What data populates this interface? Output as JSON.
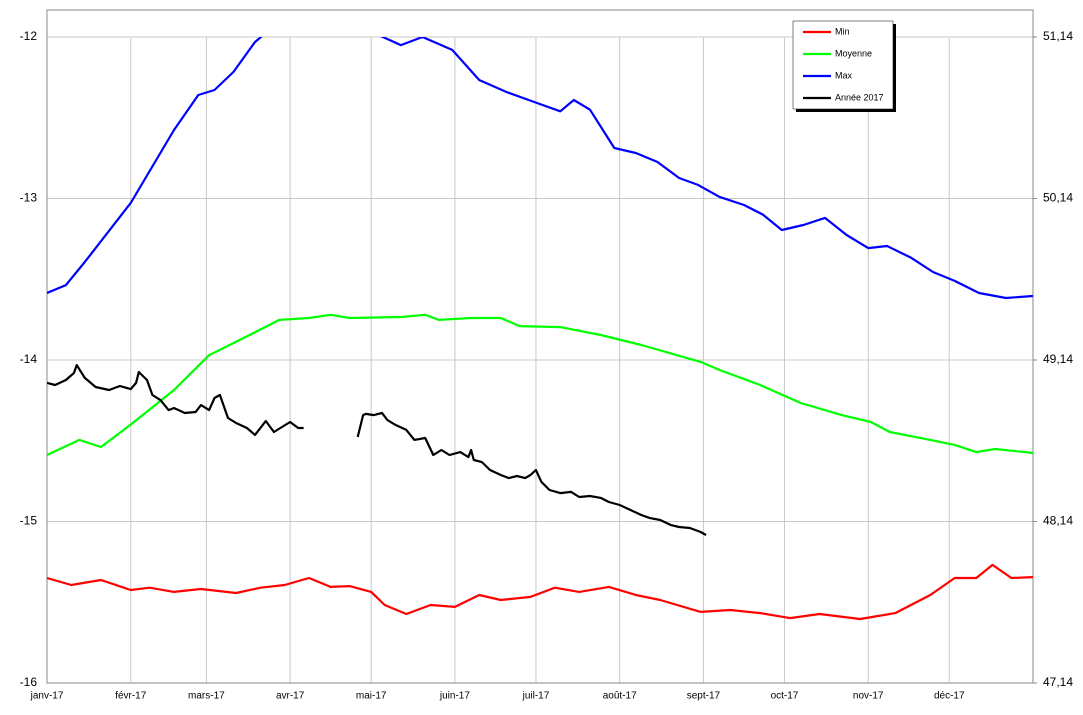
{
  "chart_data": {
    "type": "line",
    "xlim": [
      0,
      365
    ],
    "xticks": [
      {
        "value": 0,
        "label": "janv-17"
      },
      {
        "value": 31,
        "label": "févr-17"
      },
      {
        "value": 59,
        "label": "mars-17"
      },
      {
        "value": 90,
        "label": "avr-17"
      },
      {
        "value": 120,
        "label": "mai-17"
      },
      {
        "value": 151,
        "label": "juin-17"
      },
      {
        "value": 181,
        "label": "juil-17"
      },
      {
        "value": 212,
        "label": "août-17"
      },
      {
        "value": 243,
        "label": "sept-17"
      },
      {
        "value": 273,
        "label": "oct-17"
      },
      {
        "value": 304,
        "label": "nov-17"
      },
      {
        "value": 334,
        "label": "déc-17"
      }
    ],
    "ylim": [
      -16,
      -12
    ],
    "yticks": [
      -16,
      -15,
      -14,
      -13,
      -12
    ],
    "y2lim": [
      47.14,
      51.14
    ],
    "y2ticks": [
      {
        "value": 47.14,
        "label": "47,14"
      },
      {
        "value": 48.14,
        "label": "48,14"
      },
      {
        "value": 49.14,
        "label": "49,14"
      },
      {
        "value": 50.14,
        "label": "50,14"
      },
      {
        "value": 51.14,
        "label": "51,14"
      }
    ],
    "grid": true,
    "legend": "top-right",
    "series": [
      {
        "name": "Min",
        "color": "#ff0000",
        "x": [
          0,
          9,
          20,
          31,
          38,
          47,
          57,
          70,
          79,
          88,
          97,
          105,
          112,
          120,
          125,
          133,
          142,
          151,
          160,
          168,
          179,
          188,
          197,
          208,
          218,
          227,
          242,
          253,
          264,
          275,
          286,
          301,
          314,
          327,
          336,
          344,
          350,
          357,
          365
        ],
        "values": [
          -15.35,
          -15.393,
          -15.362,
          -15.424,
          -15.41,
          -15.436,
          -15.418,
          -15.443,
          -15.41,
          -15.393,
          -15.35,
          -15.405,
          -15.4,
          -15.436,
          -15.517,
          -15.573,
          -15.517,
          -15.529,
          -15.455,
          -15.486,
          -15.467,
          -15.41,
          -15.436,
          -15.405,
          -15.455,
          -15.486,
          -15.56,
          -15.548,
          -15.567,
          -15.598,
          -15.573,
          -15.604,
          -15.567,
          -15.455,
          -15.35,
          -15.35,
          -15.269,
          -15.35,
          -15.344
        ]
      },
      {
        "name": "Moyenne",
        "color": "#00ff00",
        "x": [
          0,
          12,
          20,
          31,
          47,
          60,
          75,
          86,
          97,
          105,
          112,
          131,
          140,
          145,
          157,
          168,
          175,
          190,
          205,
          220,
          242,
          249,
          264,
          279,
          294,
          305,
          312,
          327,
          336,
          344,
          351,
          365
        ],
        "values": [
          -14.588,
          -14.495,
          -14.539,
          -14.4,
          -14.186,
          -13.97,
          -13.845,
          -13.752,
          -13.74,
          -13.72,
          -13.74,
          -13.734,
          -13.72,
          -13.752,
          -13.74,
          -13.74,
          -13.79,
          -13.796,
          -13.845,
          -13.907,
          -14.012,
          -14.062,
          -14.155,
          -14.266,
          -14.34,
          -14.384,
          -14.446,
          -14.495,
          -14.526,
          -14.57,
          -14.551,
          -14.576
        ]
      },
      {
        "name": "Max",
        "color": "#0000ff",
        "x": [
          0,
          7,
          14,
          31,
          47,
          56,
          62,
          69,
          77,
          90,
          110,
          123,
          131,
          139,
          150,
          160,
          170,
          180,
          190,
          195,
          201,
          210,
          218,
          226,
          234,
          241,
          249,
          258,
          265,
          272,
          280,
          288,
          296,
          304,
          311,
          320,
          328,
          336,
          345,
          355,
          365
        ],
        "values": [
          -13.585,
          -13.536,
          -13.393,
          -13.028,
          -12.576,
          -12.359,
          -12.328,
          -12.217,
          -12.031,
          -11.85,
          -11.85,
          -11.99,
          -12.05,
          -12.0,
          -12.08,
          -12.266,
          -12.34,
          -12.4,
          -12.46,
          -12.39,
          -12.45,
          -12.687,
          -12.718,
          -12.774,
          -12.873,
          -12.916,
          -12.99,
          -13.04,
          -13.1,
          -13.195,
          -13.164,
          -13.12,
          -13.226,
          -13.307,
          -13.294,
          -13.368,
          -13.455,
          -13.51,
          -13.585,
          -13.616,
          -13.604
        ]
      },
      {
        "name": "Année 2017",
        "color": "#000000",
        "x": [
          0,
          3,
          7,
          10,
          11,
          14,
          18,
          23,
          27,
          31,
          33,
          34,
          37,
          39,
          42,
          45,
          47,
          51,
          55,
          57,
          60,
          62,
          64,
          67,
          70,
          74,
          77,
          81,
          84,
          87,
          90,
          93,
          95,
          100,
          115,
          117,
          118,
          121,
          124,
          126,
          129,
          133,
          136,
          140,
          143,
          146,
          149,
          153,
          156,
          157,
          158,
          161,
          164,
          168,
          171,
          174,
          177,
          179,
          181,
          183,
          186,
          190,
          194,
          197,
          201,
          205,
          208,
          212,
          216,
          220,
          223,
          227,
          231,
          234,
          238,
          242,
          244
        ],
        "values": [
          -14.142,
          -14.155,
          -14.124,
          -14.08,
          -14.031,
          -14.111,
          -14.167,
          -14.186,
          -14.161,
          -14.18,
          -14.142,
          -14.074,
          -14.124,
          -14.217,
          -14.248,
          -14.31,
          -14.297,
          -14.328,
          -14.322,
          -14.279,
          -14.31,
          -14.235,
          -14.217,
          -14.359,
          -14.39,
          -14.421,
          -14.464,
          -14.378,
          -14.446,
          -14.415,
          -14.384,
          -14.421,
          -14.421,
          null,
          -14.477,
          -14.341,
          -14.334,
          -14.341,
          -14.328,
          -14.372,
          -14.402,
          -14.433,
          -14.495,
          -14.483,
          -14.588,
          -14.557,
          -14.588,
          -14.57,
          -14.601,
          -14.557,
          -14.619,
          -14.632,
          -14.681,
          -14.712,
          -14.731,
          -14.718,
          -14.731,
          -14.712,
          -14.681,
          -14.755,
          -14.805,
          -14.824,
          -14.817,
          -14.848,
          -14.842,
          -14.854,
          -14.879,
          -14.898,
          -14.929,
          -14.96,
          -14.978,
          -14.991,
          -15.022,
          -15.034,
          -15.04,
          -15.065,
          -15.084
        ]
      }
    ]
  }
}
